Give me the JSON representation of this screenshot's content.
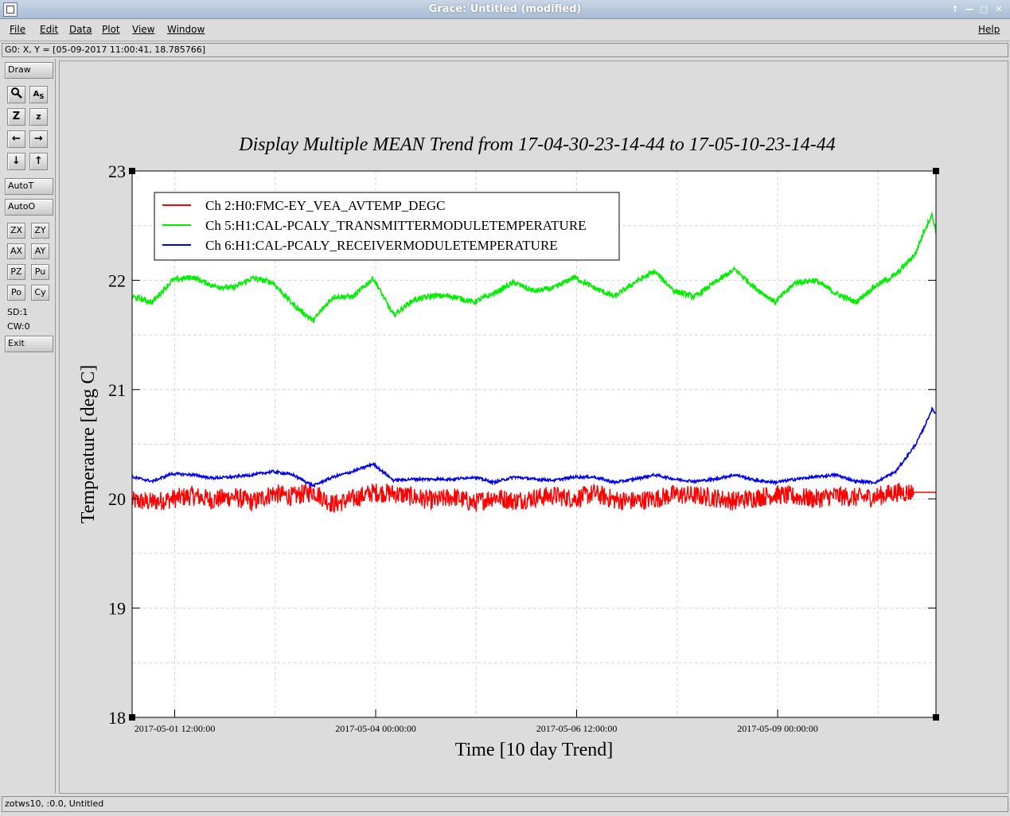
{
  "window": {
    "title": "Grace: Untitled (modified)",
    "controls": [
      "pin-icon",
      "minimize-icon",
      "maximize-icon",
      "close-icon"
    ]
  },
  "menubar": {
    "file": "File",
    "edit": "Edit",
    "data": "Data",
    "plot": "Plot",
    "view": "View",
    "window": "Window",
    "help": "Help"
  },
  "coordbar": {
    "text": "G0: X, Y = [05-09-2017 11:00:41, 18.785766]"
  },
  "toolbar": {
    "draw": "Draw",
    "autot": "AutoT",
    "autoo": "AutoO",
    "zx": "ZX",
    "zy": "ZY",
    "ax": "AX",
    "ay": "AY",
    "pz": "PZ",
    "pu": "Pu",
    "po": "Po",
    "cy": "Cy",
    "sd": "SD:1",
    "cw": "CW:0",
    "exit": "Exit",
    "icons": [
      "zoom-icon",
      "autoscale-text-icon",
      "zoom-z-icon",
      "unzoom-z-icon",
      "left-arrow-icon",
      "right-arrow-icon",
      "down-arrow-icon",
      "up-arrow-icon"
    ]
  },
  "statusbar": {
    "text": "zotws10, :0.0, Untitled"
  },
  "chart_data": {
    "type": "line",
    "title": "Display Multiple MEAN Trend from 17-04-30-23-14-44 to 17-05-10-23-14-44",
    "xlabel": "Time [10 day Trend]",
    "ylabel": "Temperature [deg C]",
    "ylim": [
      18,
      23
    ],
    "yticks": [
      "18",
      "19",
      "20",
      "21",
      "22",
      "23"
    ],
    "xlim_days": [
      0,
      10
    ],
    "xticks": [
      {
        "label": "2017-05-01 12:00:00",
        "day": 0.53
      },
      {
        "label": "2017-05-04 00:00:00",
        "day": 3.03
      },
      {
        "label": "2017-05-06 12:00:00",
        "day": 5.53
      },
      {
        "label": "2017-05-09 00:00:00",
        "day": 8.03
      }
    ],
    "grid": true,
    "legend_position": "top-left",
    "colors": {
      "ch2": "#ff0000",
      "ch5": "#00ee00",
      "ch6": "#0000ee"
    },
    "series": [
      {
        "name": "Ch 2:H0:FMC-EY_VEA_AVTEMP_DEGC",
        "color": "#ff0000",
        "x": [
          0,
          0.25,
          0.5,
          0.75,
          1,
          1.25,
          1.5,
          1.75,
          2,
          2.25,
          2.5,
          2.75,
          3,
          3.25,
          3.5,
          3.75,
          4,
          4.25,
          4.5,
          4.75,
          5,
          5.25,
          5.5,
          5.75,
          6,
          6.25,
          6.5,
          6.75,
          7,
          7.25,
          7.5,
          7.75,
          8,
          8.25,
          8.5,
          8.75,
          9,
          9.25,
          9.5,
          9.75,
          10
        ],
        "values": [
          19.98,
          19.97,
          20.0,
          20.03,
          19.99,
          20.02,
          19.97,
          20.05,
          20.02,
          20.07,
          19.95,
          20.0,
          20.06,
          20.05,
          20.02,
          19.98,
          20.02,
          19.96,
          20.02,
          19.98,
          20.01,
          20.03,
          20.0,
          20.05,
          19.99,
          19.98,
          20.0,
          20.04,
          20.03,
          20.01,
          19.98,
          20.01,
          20.04,
          20.02,
          20.0,
          20.03,
          20.01,
          20.02,
          20.06,
          20.06,
          20.06
        ],
        "noise_amplitude": 0.09
      },
      {
        "name": "Ch 5:H1:CAL-PCALY_TRANSMITTERMODULETEMPERATURE",
        "color": "#00ee00",
        "x": [
          0,
          0.25,
          0.5,
          0.75,
          1,
          1.25,
          1.5,
          1.75,
          2,
          2.25,
          2.5,
          2.75,
          3,
          3.25,
          3.5,
          3.75,
          4,
          4.25,
          4.5,
          4.75,
          5,
          5.25,
          5.5,
          5.75,
          6,
          6.25,
          6.5,
          6.75,
          7,
          7.25,
          7.5,
          7.75,
          8,
          8.25,
          8.5,
          8.75,
          9,
          9.25,
          9.5,
          9.75,
          9.85,
          9.95,
          10
        ],
        "values": [
          21.85,
          21.8,
          22.0,
          22.03,
          21.95,
          21.93,
          22.02,
          21.98,
          21.78,
          21.63,
          21.85,
          21.85,
          22.02,
          21.68,
          21.82,
          21.86,
          21.85,
          21.8,
          21.88,
          21.98,
          21.9,
          21.93,
          22.03,
          21.93,
          21.85,
          21.98,
          22.08,
          21.9,
          21.85,
          21.98,
          22.1,
          21.93,
          21.8,
          21.98,
          22.0,
          21.88,
          21.8,
          21.95,
          22.05,
          22.25,
          22.45,
          22.6,
          22.45
        ],
        "noise_amplitude": 0.025
      },
      {
        "name": "Ch 6:H1:CAL-PCALY_RECEIVERMODULETEMPERATURE",
        "color": "#0000ee",
        "x": [
          0,
          0.25,
          0.5,
          0.75,
          1,
          1.25,
          1.5,
          1.75,
          2,
          2.25,
          2.5,
          2.75,
          3,
          3.25,
          3.5,
          3.75,
          4,
          4.25,
          4.5,
          4.75,
          5,
          5.25,
          5.5,
          5.75,
          6,
          6.25,
          6.5,
          6.75,
          7,
          7.25,
          7.5,
          7.75,
          8,
          8.25,
          8.5,
          8.75,
          9,
          9.25,
          9.5,
          9.75,
          9.85,
          9.95,
          10
        ],
        "values": [
          20.2,
          20.16,
          20.23,
          20.22,
          20.19,
          20.2,
          20.22,
          20.25,
          20.22,
          20.12,
          20.2,
          20.25,
          20.32,
          20.17,
          20.18,
          20.18,
          20.18,
          20.2,
          20.15,
          20.2,
          20.18,
          20.17,
          20.2,
          20.2,
          20.15,
          20.18,
          20.22,
          20.18,
          20.16,
          20.18,
          20.22,
          20.17,
          20.15,
          20.18,
          20.2,
          20.22,
          20.16,
          20.15,
          20.25,
          20.5,
          20.65,
          20.82,
          20.78
        ],
        "noise_amplitude": 0.012
      }
    ]
  }
}
